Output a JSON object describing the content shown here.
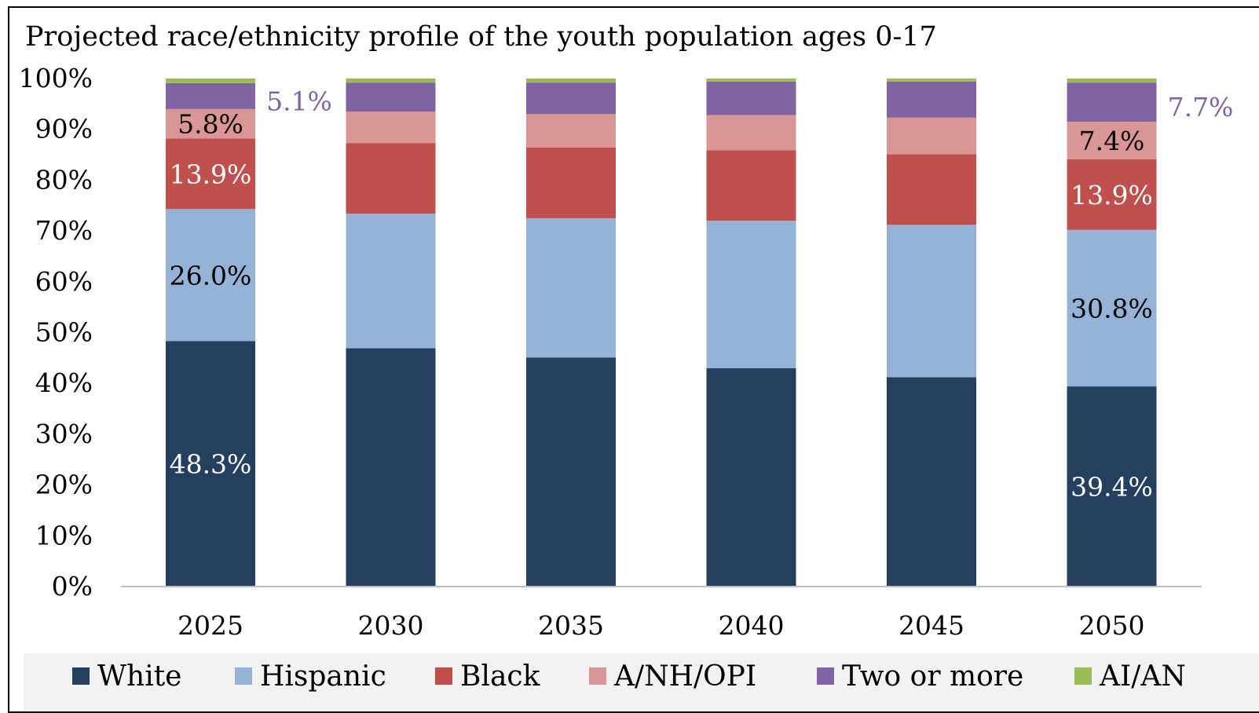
{
  "chart_data": {
    "type": "bar",
    "stacked": true,
    "title": "Projected race/ethnicity profile of the youth population ages 0-17",
    "xlabel": "",
    "ylabel": "",
    "ylim": [
      0,
      100
    ],
    "yticks": [
      "0%",
      "10%",
      "20%",
      "30%",
      "40%",
      "50%",
      "60%",
      "70%",
      "80%",
      "90%",
      "100%"
    ],
    "grid": false,
    "legend": "bottom",
    "categories": [
      "2025",
      "2030",
      "2035",
      "2040",
      "2045",
      "2050"
    ],
    "series": [
      {
        "name": "White",
        "color": "#243f60",
        "values": [
          48.3,
          46.9,
          45.1,
          43.0,
          41.2,
          39.4
        ],
        "labels": [
          "48.3%",
          "",
          "",
          "",
          "",
          "39.4%"
        ],
        "label_color": "#ffffff"
      },
      {
        "name": "Hispanic",
        "color": "#95b3d7",
        "values": [
          26.0,
          26.5,
          27.4,
          29.0,
          30.0,
          30.8
        ],
        "labels": [
          "26.0%",
          "",
          "",
          "",
          "",
          "30.8%"
        ],
        "label_color": "#000000"
      },
      {
        "name": "Black",
        "color": "#c0504d",
        "values": [
          13.9,
          13.9,
          13.9,
          13.9,
          13.9,
          13.9
        ],
        "labels": [
          "13.9%",
          "",
          "",
          "",
          "",
          "13.9%"
        ],
        "label_color": "#ffffff"
      },
      {
        "name": "A/NH/OPI",
        "color": "#d99694",
        "values": [
          5.8,
          6.2,
          6.6,
          6.9,
          7.2,
          7.4
        ],
        "labels": [
          "5.8%",
          "",
          "",
          "",
          "",
          "7.4%"
        ],
        "label_color": "#000000"
      },
      {
        "name": "Two or more",
        "color": "#8064a2",
        "values": [
          5.1,
          5.7,
          6.2,
          6.6,
          7.1,
          7.7
        ],
        "labels": [
          "5.1%",
          "",
          "",
          "",
          "",
          "7.7%"
        ],
        "label_color": "#8064a2",
        "label_outside": true
      },
      {
        "name": "AI/AN",
        "color": "#9bbb59",
        "values": [
          0.9,
          0.8,
          0.8,
          0.6,
          0.6,
          0.8
        ],
        "labels": [
          "",
          "",
          "",
          "",
          "",
          ""
        ],
        "label_color": "#000000"
      }
    ]
  }
}
